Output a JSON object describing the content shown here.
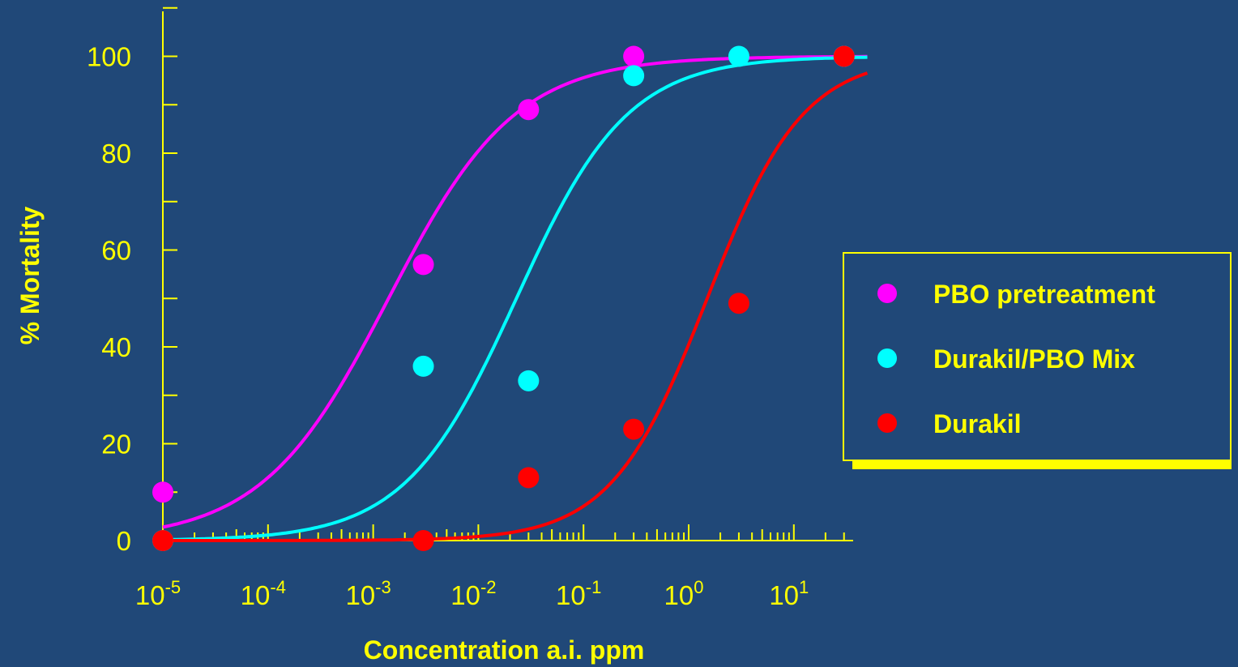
{
  "chart_data": {
    "type": "scatter",
    "xlabel": "Concentration a.i. ppm",
    "ylabel": "% Mortality",
    "xscale": "log",
    "xlim": [
      1e-05,
      50
    ],
    "ylim": [
      -10,
      110
    ],
    "yticks": [
      0,
      20,
      40,
      60,
      80,
      100
    ],
    "xticks": [
      {
        "value": 1e-05,
        "base": "10",
        "exp": "-5"
      },
      {
        "value": 0.0001,
        "base": "10",
        "exp": "-4"
      },
      {
        "value": 0.001,
        "base": "10",
        "exp": "-3"
      },
      {
        "value": 0.01,
        "base": "10",
        "exp": "-2"
      },
      {
        "value": 0.1,
        "base": "10",
        "exp": "-1"
      },
      {
        "value": 1,
        "base": "10",
        "exp": "0"
      },
      {
        "value": 10,
        "base": "10",
        "exp": "1"
      }
    ],
    "legend_position": "right",
    "series": [
      {
        "name": "PBO pretreatment",
        "color": "#ff00ff",
        "points": [
          {
            "x": 1e-05,
            "y": 10
          },
          {
            "x": 0.003,
            "y": 57
          },
          {
            "x": 0.03,
            "y": 89
          },
          {
            "x": 0.3,
            "y": 100
          },
          {
            "x": 30,
            "y": 100
          }
        ],
        "fit": {
          "lc50": 0.0014,
          "slope": 0.72
        }
      },
      {
        "name": "Durakil/PBO Mix",
        "color": "#00ffff",
        "points": [
          {
            "x": 1e-05,
            "y": 0
          },
          {
            "x": 0.003,
            "y": 36
          },
          {
            "x": 0.03,
            "y": 33
          },
          {
            "x": 0.3,
            "y": 96
          },
          {
            "x": 3,
            "y": 100
          },
          {
            "x": 30,
            "y": 100
          }
        ],
        "fit": {
          "lc50": 0.023,
          "slope": 0.82
        }
      },
      {
        "name": "Durakil",
        "color": "#ff0000",
        "points": [
          {
            "x": 1e-05,
            "y": 0
          },
          {
            "x": 0.003,
            "y": 0
          },
          {
            "x": 0.03,
            "y": 13
          },
          {
            "x": 0.3,
            "y": 23
          },
          {
            "x": 3,
            "y": 49
          },
          {
            "x": 30,
            "y": 100
          }
        ],
        "fit": {
          "lc50": 1.5,
          "slope": 0.95
        }
      }
    ]
  }
}
